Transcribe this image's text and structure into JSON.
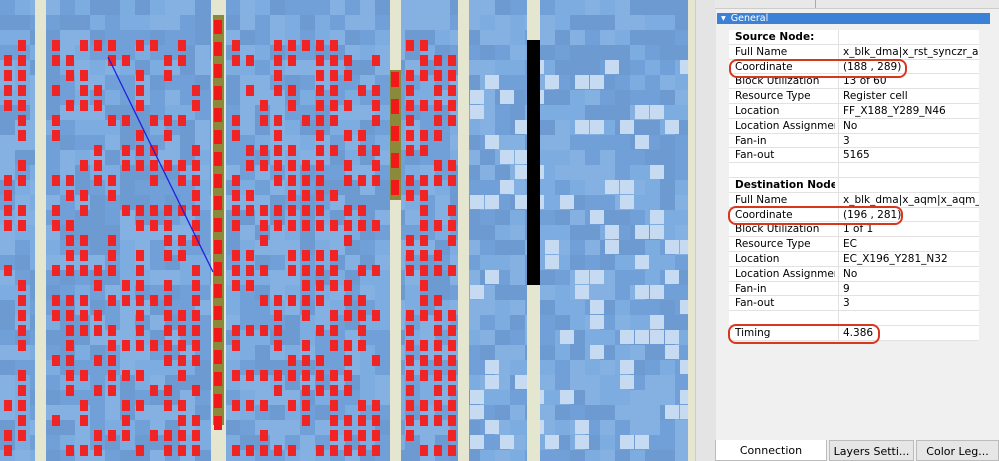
{
  "panel": {
    "section": "General",
    "source": {
      "heading": "Source Node:",
      "rows": [
        [
          "Full Name",
          "x_blk_dma|x_rst_synczr_aqr"
        ],
        [
          "Coordinate",
          "(188 , 289)"
        ],
        [
          "Block Utilization",
          "13 of 60"
        ],
        [
          "Resource Type",
          "Register cell"
        ],
        [
          "Location",
          "FF_X188_Y289_N46"
        ],
        [
          "Location Assignment",
          "No"
        ],
        [
          "Fan-in",
          "3"
        ],
        [
          "Fan-out",
          "5165"
        ]
      ]
    },
    "destination": {
      "heading": "Destination Node:",
      "rows": [
        [
          "Full Name",
          "x_blk_dma|x_aqm|x_aqm_tx"
        ],
        [
          "Coordinate",
          "(196 , 281)"
        ],
        [
          "Block Utilization",
          "1 of 1"
        ],
        [
          "Resource Type",
          "EC"
        ],
        [
          "Location",
          "EC_X196_Y281_N32"
        ],
        [
          "Location Assignment",
          "No"
        ],
        [
          "Fan-in",
          "9"
        ],
        [
          "Fan-out",
          "3"
        ]
      ]
    },
    "timing": [
      "Timing",
      "4.386"
    ]
  },
  "tabs": [
    "Connection Proper...",
    "Layers Setti...",
    "Color Leg..."
  ]
}
